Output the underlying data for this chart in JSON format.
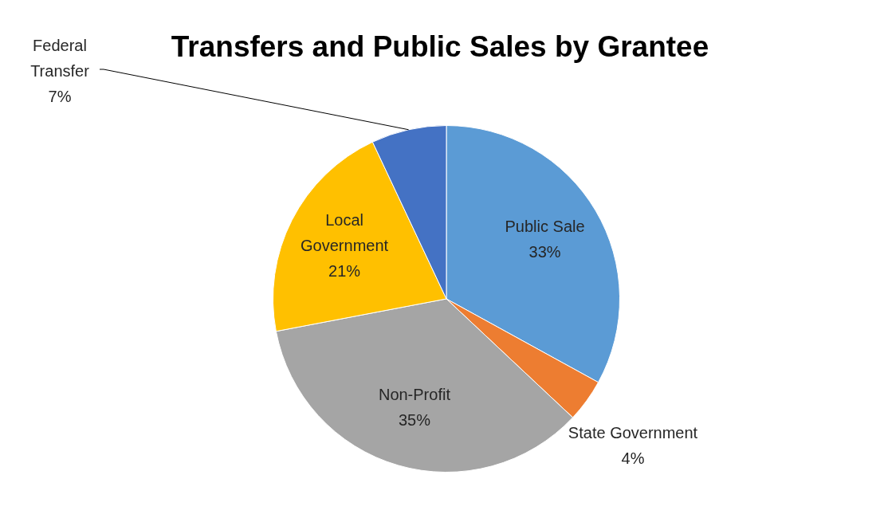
{
  "chart_data": {
    "type": "pie",
    "title": "Transfers and Public Sales by Grantee",
    "categories": [
      "Public Sale",
      "State Government",
      "Non-Profit",
      "Local Government",
      "Federal Transfer"
    ],
    "values": [
      33,
      4,
      35,
      21,
      7
    ],
    "value_labels": [
      "33%",
      "4%",
      "35%",
      "21%",
      "7%"
    ],
    "colors": [
      "#5b9bd5",
      "#ed7d31",
      "#a5a5a5",
      "#ffc000",
      "#4472c4"
    ],
    "legend": false
  }
}
